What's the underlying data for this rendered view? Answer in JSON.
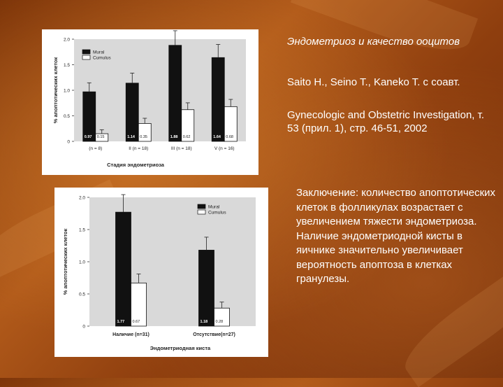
{
  "slide": {
    "title": "Эндометриоз и качество ооцитов",
    "authors": "Saito H., Seino T., Kaneko T. с соавт.",
    "journal": "Gynecologic and Obstetric Investigation, т. 53 (прил. 1), стр. 46-51, 2002",
    "conclusion": "Заключение: количество апоптотических клеток в фолликулах возрастает с увеличением тяжести эндометриоза. Наличие эндометриодной кисты в яичнике значительно увеличивает вероятность апоптоза в клетках гранулезы."
  },
  "chart_data": [
    {
      "type": "bar",
      "ylabel": "% апоптотических клеток",
      "xlabel": "Стадия эндометриоза",
      "ylim": [
        0,
        2.0
      ],
      "yticks": [
        "0",
        "0.5",
        "1.0",
        "1.5",
        "2.0"
      ],
      "legend_position": "top-left",
      "categories": [
        "(n = 8)",
        "II (n = 18)",
        "III (n = 18)",
        "V (n = 16)"
      ],
      "series": [
        {
          "name": "Mural",
          "color": "#111111",
          "values": [
            0.97,
            1.14,
            1.88,
            1.64
          ],
          "labels": [
            "0.97",
            "1.14",
            "1.88",
            "1.64"
          ]
        },
        {
          "name": "Cumulus",
          "color": "#ffffff",
          "values": [
            0.15,
            0.35,
            0.62,
            0.68
          ],
          "labels": [
            "0.15",
            "0.35",
            "0.62",
            "0.68"
          ]
        }
      ]
    },
    {
      "type": "bar",
      "ylabel": "% апоптотических клеток",
      "xlabel": "Эндометриодная киста",
      "ylim": [
        0,
        2.0
      ],
      "yticks": [
        "0",
        "0.5",
        "1.0",
        "1.5",
        "2.0"
      ],
      "legend_position": "top-right",
      "categories": [
        "Наличие (n=31)",
        "Отсутствие(n=27)"
      ],
      "series": [
        {
          "name": "Mural",
          "color": "#111111",
          "values": [
            1.77,
            1.18
          ],
          "labels": [
            "1.77",
            "1.18"
          ]
        },
        {
          "name": "Cumulus",
          "color": "#ffffff",
          "values": [
            0.67,
            0.28
          ],
          "labels": [
            "0.67",
            "0.28"
          ]
        }
      ]
    }
  ]
}
